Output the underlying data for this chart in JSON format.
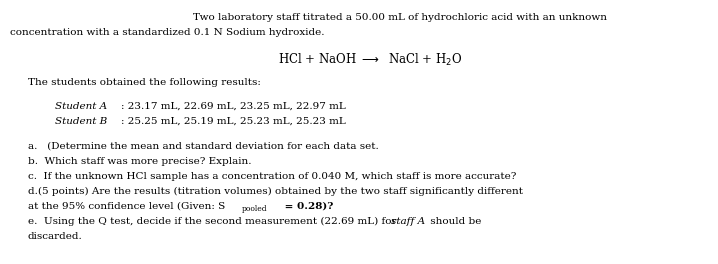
{
  "bg_color": "#ffffff",
  "fig_width": 7.18,
  "fig_height": 2.64,
  "dpi": 100,
  "fontsize": 7.5,
  "fontsize_eq": 8.5,
  "fontfamily": "DejaVu Serif",
  "line1": "Two laboratory staff titrated a 50.00 mL of hydrochloric acid with an unknown",
  "line2": "concentration with a standardized 0.1 N Sodium hydroxide.",
  "line_students": "The students obtained the following results:",
  "studentA_label": "Student A",
  "studentA_colon": ": 23.17 mL, 22.69 mL, 23.25 mL, 22.97 mL",
  "studentB_label": "Student B",
  "studentB_colon": ": 25.25 mL, 25.19 mL, 25.23 mL, 25.23 mL",
  "qa": "a.   (Determine the mean and standard deviation for each data set.",
  "qb": "b.  Which staff was more precise? Explain.",
  "qc": "c.  If the unknown HCl sample has a concentration of 0.040 M, which staff is more accurate?",
  "qd1": "d.(5 points) Are the results (titration volumes) obtained by the two staff significantly different",
  "qd2_before": "at the 95% confidence level (Given: S",
  "qd2_sub": "pooled",
  "qd2_after": " = 0.28)?",
  "qe1_before": "e.  Using the Q test, decide if the second measurement (22.69 mL) for ",
  "qe1_italic": "staff A",
  "qe1_after": " should be",
  "qe2": "discarded."
}
